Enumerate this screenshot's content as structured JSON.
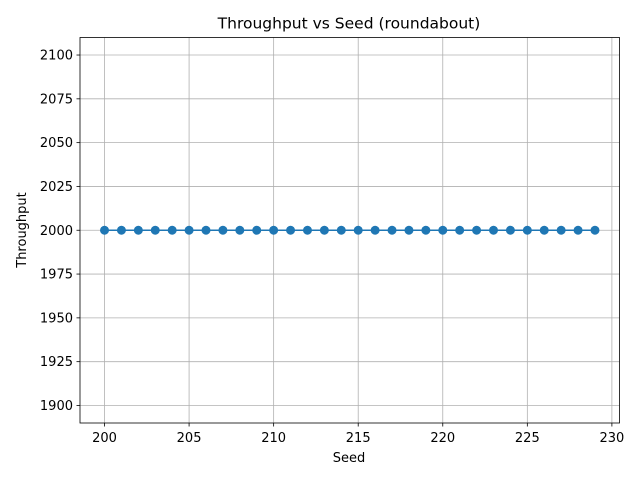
{
  "chart_data": {
    "type": "line",
    "title": "Throughput vs Seed (roundabout)",
    "xlabel": "Seed",
    "ylabel": "Throughput",
    "x": [
      200,
      201,
      202,
      203,
      204,
      205,
      206,
      207,
      208,
      209,
      210,
      211,
      212,
      213,
      214,
      215,
      216,
      217,
      218,
      219,
      220,
      221,
      222,
      223,
      224,
      225,
      226,
      227,
      228,
      229
    ],
    "series": [
      {
        "values": [
          2000,
          2000,
          2000,
          2000,
          2000,
          2000,
          2000,
          2000,
          2000,
          2000,
          2000,
          2000,
          2000,
          2000,
          2000,
          2000,
          2000,
          2000,
          2000,
          2000,
          2000,
          2000,
          2000,
          2000,
          2000,
          2000,
          2000,
          2000,
          2000,
          2000
        ],
        "color": "#1f77b4",
        "marker": "circle"
      }
    ],
    "xlim": [
      198.55,
      230.45
    ],
    "ylim": [
      1890,
      2110
    ],
    "xticks": [
      200,
      205,
      210,
      215,
      220,
      225,
      230
    ],
    "yticks": [
      1900,
      1925,
      1950,
      1975,
      2000,
      2025,
      2050,
      2075,
      2100
    ],
    "grid": true,
    "legend": "none"
  }
}
